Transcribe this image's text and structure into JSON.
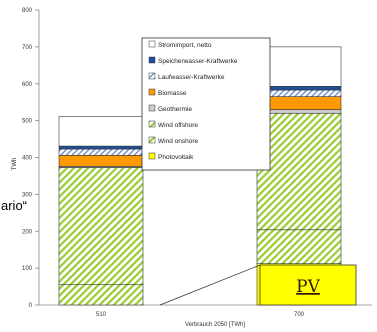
{
  "chart_data": {
    "type": "bar",
    "stacked": true,
    "categories": [
      "510",
      "700"
    ],
    "xlabel": "Verbrauch 2050 [TWh]",
    "ylabel": "TWh",
    "ylim": [
      0,
      800
    ],
    "yticks": [
      0,
      100,
      200,
      300,
      400,
      500,
      600,
      700,
      800
    ],
    "grid": false,
    "legend_position": "top-center",
    "series": [
      {
        "name": "Photovoltaik",
        "values": [
          0,
          112
        ],
        "color": "#ffff00",
        "pattern": "solid"
      },
      {
        "name": "Wind onshore",
        "values": [
          55,
          92
        ],
        "color": "#99cc33",
        "pattern": "hatch"
      },
      {
        "name": "Wind offshore",
        "values": [
          318,
          316
        ],
        "color": "#99cc33",
        "pattern": "hatch"
      },
      {
        "name": "Geothermie",
        "values": [
          3,
          10
        ],
        "color": "#cccccc",
        "pattern": "solid"
      },
      {
        "name": "Biomasse",
        "values": [
          30,
          35
        ],
        "color": "#ff9900",
        "pattern": "solid"
      },
      {
        "name": "Laufwasser-Kraftwerke",
        "values": [
          17,
          18
        ],
        "color": "#6688cc",
        "pattern": "hatch-light"
      },
      {
        "name": "Speicherwasser-Kraftwerke",
        "values": [
          8,
          10
        ],
        "color": "#1f4e9a",
        "pattern": "solid"
      },
      {
        "name": "Stromimport, netto",
        "values": [
          80,
          107
        ],
        "color": "#ffffff",
        "pattern": "solid"
      }
    ],
    "annotations": {
      "partial_text": "ario“",
      "pv_label": "PV"
    }
  }
}
